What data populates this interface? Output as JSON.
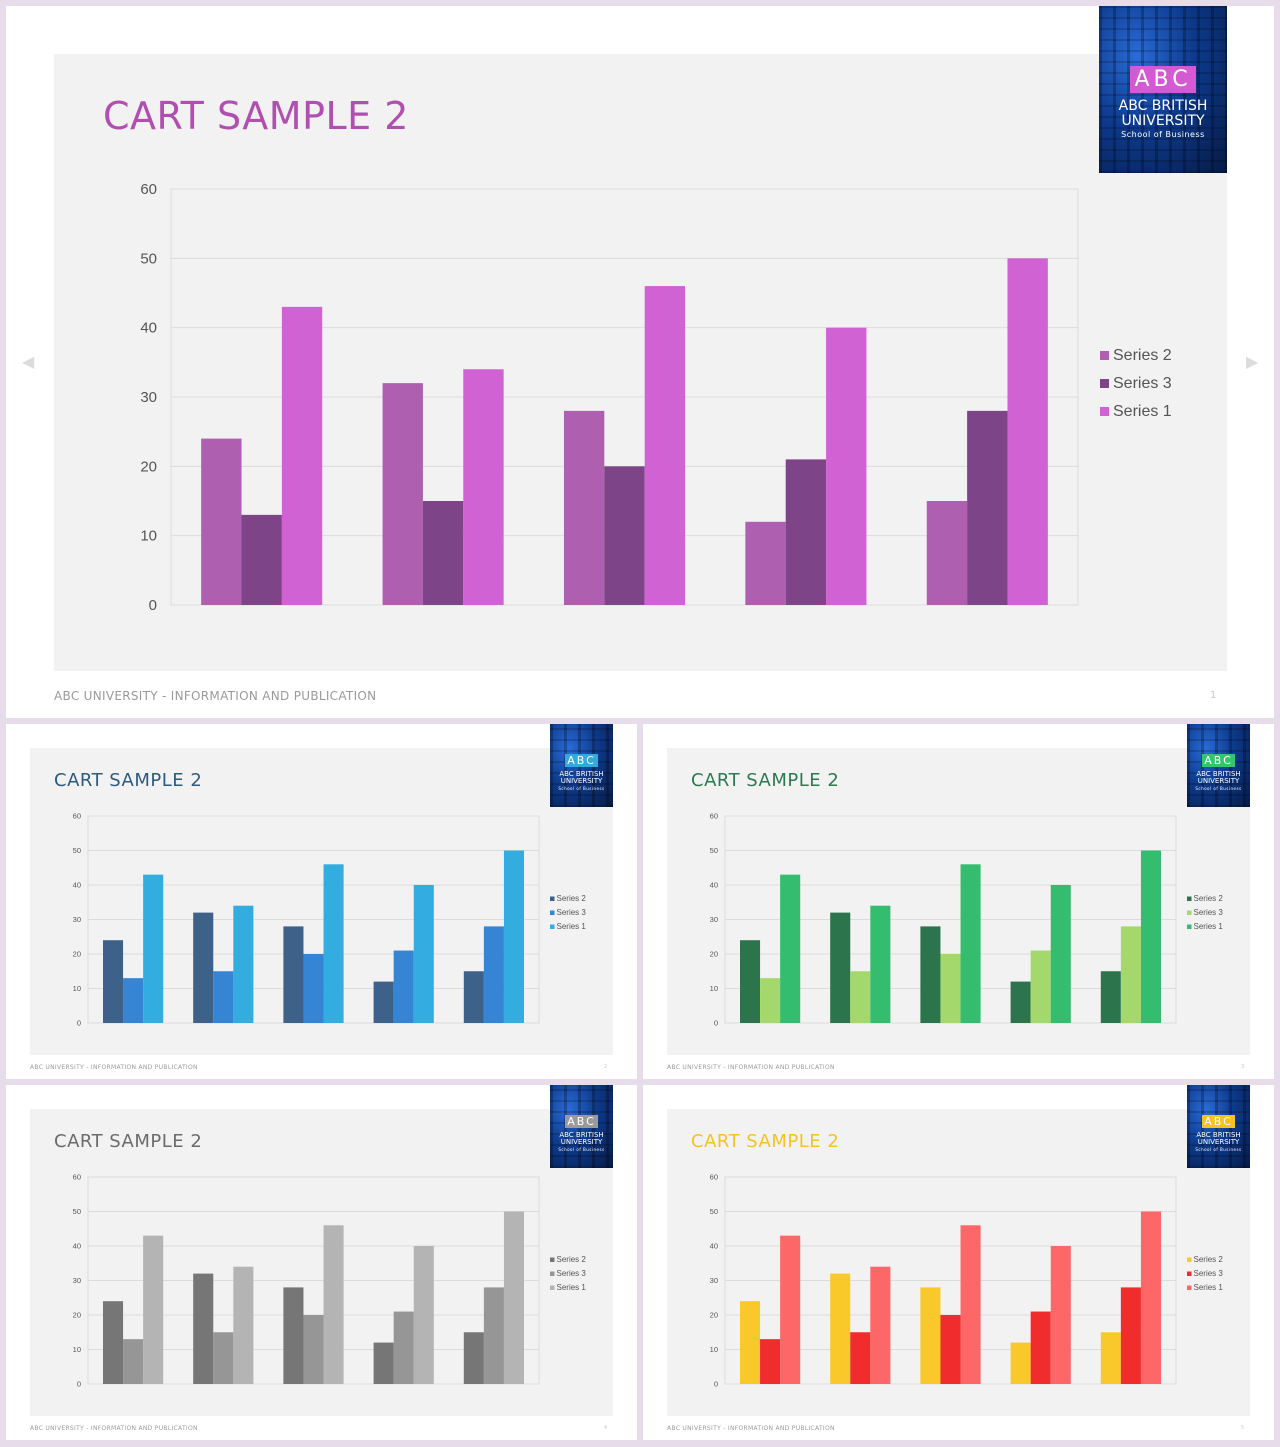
{
  "slides": [
    {
      "title": "CART SAMPLE 2",
      "footer": "ABC UNIVERSITY - INFORMATION AND PUBLICATION",
      "page": "1",
      "logo": {
        "letters": "ABC",
        "line1": "ABC BRITISH",
        "line2": "UNIVERSITY",
        "line3": "School of Business"
      },
      "colors": {
        "title": "#b04fb0",
        "logo_letters": "#d45ad4",
        "series": [
          "#ae5fb0",
          "#7d4487",
          "#d162d3"
        ]
      }
    },
    {
      "title": "CART SAMPLE 2",
      "footer": "ABC UNIVERSITY - INFORMATION AND PUBLICATION",
      "page": "2",
      "logo": {
        "letters": "ABC",
        "line1": "ABC BRITISH",
        "line2": "UNIVERSITY",
        "line3": "School of Business"
      },
      "colors": {
        "title": "#2e5a80",
        "logo_letters": "#34aadc",
        "series": [
          "#3e6189",
          "#3585d4",
          "#33acdf"
        ]
      }
    },
    {
      "title": "CART SAMPLE 2",
      "footer": "ABC UNIVERSITY - INFORMATION AND PUBLICATION",
      "page": "3",
      "logo": {
        "letters": "ABC",
        "line1": "ABC BRITISH",
        "line2": "UNIVERSITY",
        "line3": "School of Business"
      },
      "colors": {
        "title": "#2c7a4f",
        "logo_letters": "#35c46f",
        "series": [
          "#2c744b",
          "#a4d86d",
          "#35bd6f"
        ]
      }
    },
    {
      "title": "CART SAMPLE 2",
      "footer": "ABC UNIVERSITY - INFORMATION AND PUBLICATION",
      "page": "4",
      "logo": {
        "letters": "ABC",
        "line1": "ABC BRITISH",
        "line2": "UNIVERSITY",
        "line3": "School of Business"
      },
      "colors": {
        "title": "#6b6b6b",
        "logo_letters": "#9a9a9a",
        "series": [
          "#767676",
          "#969696",
          "#b4b4b4"
        ]
      }
    },
    {
      "title": "CART SAMPLE 2",
      "footer": "ABC UNIVERSITY - INFORMATION AND PUBLICATION",
      "page": "5",
      "logo": {
        "letters": "ABC",
        "line1": "ABC BRITISH",
        "line2": "UNIVERSITY",
        "line3": "School of Business"
      },
      "colors": {
        "title": "#f5c220",
        "logo_letters": "#f5c220",
        "series": [
          "#f9c92c",
          "#f02c2c",
          "#fd6767"
        ]
      }
    }
  ],
  "chart_data": {
    "type": "bar",
    "categories": [
      "",
      "",
      "",
      "",
      ""
    ],
    "series": [
      {
        "name": "Series 2",
        "values": [
          24,
          32,
          28,
          12,
          15
        ]
      },
      {
        "name": "Series 3",
        "values": [
          13,
          15,
          20,
          21,
          28
        ]
      },
      {
        "name": "Series 1",
        "values": [
          43,
          34,
          46,
          40,
          50
        ]
      }
    ],
    "legend_order": [
      "Series 2",
      "Series 3",
      "Series 1"
    ],
    "yticks": [
      "0",
      "10",
      "20",
      "30",
      "40",
      "50",
      "60"
    ],
    "ylim": [
      0,
      60
    ],
    "grid": true,
    "legend_position": "right"
  }
}
